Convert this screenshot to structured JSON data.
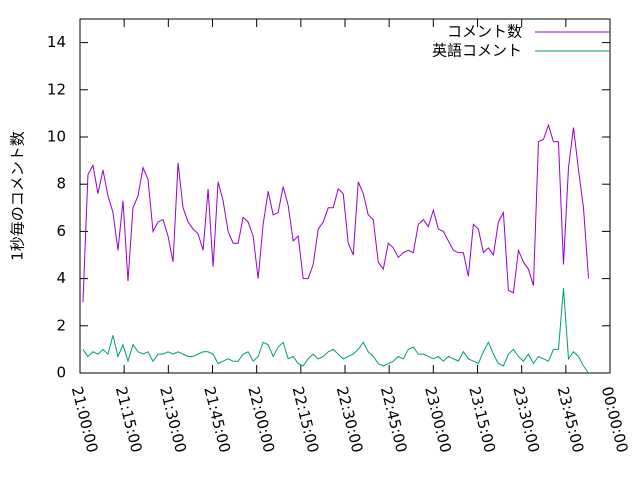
{
  "chart_data": {
    "type": "line",
    "ylabel": "1秒毎のコメント数",
    "x": [
      1,
      2.7,
      4.4,
      6.1,
      7.8,
      9.5,
      11.2,
      12.9,
      14.6,
      16.3,
      18,
      19.7,
      21.4,
      23.1,
      24.8,
      26.5,
      28.2,
      29.9,
      31.6,
      33.3,
      35,
      36.7,
      38.4,
      40.1,
      41.8,
      43.5,
      45.2,
      46.9,
      48.6,
      50.3,
      52,
      53.7,
      55.4,
      57.1,
      58.8,
      60.5,
      62.2,
      63.9,
      65.6,
      67.3,
      69,
      70.7,
      72.4,
      74.1,
      75.8,
      77.5,
      79.2,
      80.9,
      82.6,
      84.3,
      86,
      87.7,
      89.4,
      91.1,
      92.8,
      94.5,
      96.2,
      97.9,
      99.6,
      101.3,
      103,
      104.7,
      106.4,
      108.1,
      109.8,
      111.5,
      113.2,
      114.9,
      116.6,
      118.3,
      120,
      121.7,
      123.4,
      125.1,
      126.8,
      128.5,
      130.2,
      131.9,
      133.6,
      135.3,
      137,
      138.7,
      140.4,
      142.1,
      143.8,
      145.5,
      147.2,
      148.9,
      150.6,
      152.3,
      154,
      155.7,
      157.4,
      159.1,
      160.8,
      162.5,
      164.2,
      165.9,
      167.6,
      169.3,
      171,
      172.7
    ],
    "series": [
      {
        "name": "コメント数",
        "color": "#9400d3",
        "values": [
          3.0,
          8.4,
          8.8,
          7.6,
          8.6,
          7.5,
          6.8,
          5.2,
          7.3,
          3.9,
          7.0,
          7.5,
          8.7,
          8.2,
          6.0,
          6.4,
          6.5,
          5.8,
          4.7,
          8.9,
          7.0,
          6.4,
          6.1,
          5.9,
          5.2,
          7.8,
          4.5,
          8.1,
          7.3,
          6.0,
          5.5,
          5.5,
          6.6,
          6.4,
          5.8,
          4.0,
          6.3,
          7.7,
          6.7,
          6.8,
          7.9,
          7.1,
          5.6,
          5.8,
          4.0,
          4.0,
          4.6,
          6.1,
          6.4,
          7.0,
          7.0,
          7.8,
          7.6,
          5.5,
          5.0,
          8.1,
          7.6,
          6.7,
          6.5,
          4.7,
          4.4,
          5.5,
          5.3,
          4.9,
          5.1,
          5.2,
          5.1,
          6.3,
          6.5,
          6.2,
          6.9,
          6.1,
          6.0,
          5.6,
          5.2,
          5.1,
          5.1,
          4.1,
          6.3,
          6.1,
          5.1,
          5.3,
          5.0,
          6.4,
          6.8,
          3.5,
          3.4,
          5.2,
          4.7,
          4.4,
          3.7,
          9.8,
          9.9,
          10.5,
          9.8,
          9.8,
          4.6,
          8.7,
          10.4,
          8.6,
          7.0,
          4.0
        ]
      },
      {
        "name": "英語コメント",
        "color": "#009e73",
        "values": [
          1.0,
          0.7,
          0.9,
          0.8,
          1.0,
          0.8,
          1.6,
          0.7,
          1.2,
          0.5,
          1.2,
          0.9,
          0.8,
          0.9,
          0.5,
          0.8,
          0.8,
          0.9,
          0.8,
          0.9,
          0.8,
          0.7,
          0.7,
          0.8,
          0.9,
          0.9,
          0.8,
          0.4,
          0.5,
          0.6,
          0.5,
          0.5,
          0.8,
          0.9,
          0.5,
          0.7,
          1.3,
          1.2,
          0.7,
          1.1,
          1.3,
          0.6,
          0.7,
          0.4,
          0.3,
          0.6,
          0.8,
          0.6,
          0.7,
          0.9,
          1.0,
          0.8,
          0.6,
          0.7,
          0.8,
          1.0,
          1.3,
          0.9,
          0.7,
          0.4,
          0.3,
          0.4,
          0.5,
          0.7,
          0.6,
          1.0,
          1.1,
          0.8,
          0.8,
          0.7,
          0.6,
          0.7,
          0.5,
          0.7,
          0.6,
          0.5,
          0.9,
          0.6,
          0.5,
          0.4,
          0.9,
          1.3,
          0.8,
          0.4,
          0.3,
          0.8,
          1.0,
          0.7,
          0.5,
          0.8,
          0.4,
          0.7,
          0.6,
          0.5,
          1.0,
          1.0,
          3.6,
          0.6,
          0.9,
          0.7,
          0.3,
          0.0
        ]
      }
    ],
    "xlim": [
      0,
      180
    ],
    "xticks": [
      {
        "value": 0,
        "label": "21:00:00"
      },
      {
        "value": 15,
        "label": "21:15:00"
      },
      {
        "value": 30,
        "label": "21:30:00"
      },
      {
        "value": 45,
        "label": "21:45:00"
      },
      {
        "value": 60,
        "label": "22:00:00"
      },
      {
        "value": 75,
        "label": "22:15:00"
      },
      {
        "value": 90,
        "label": "22:30:00"
      },
      {
        "value": 105,
        "label": "22:45:00"
      },
      {
        "value": 120,
        "label": "23:00:00"
      },
      {
        "value": 135,
        "label": "23:15:00"
      },
      {
        "value": 150,
        "label": "23:30:00"
      },
      {
        "value": 165,
        "label": "23:45:00"
      },
      {
        "value": 180,
        "label": "00:00:00"
      }
    ],
    "ylim": [
      0,
      15
    ],
    "yticks": [
      0,
      2,
      4,
      6,
      8,
      10,
      12,
      14
    ],
    "legend": "top right"
  }
}
